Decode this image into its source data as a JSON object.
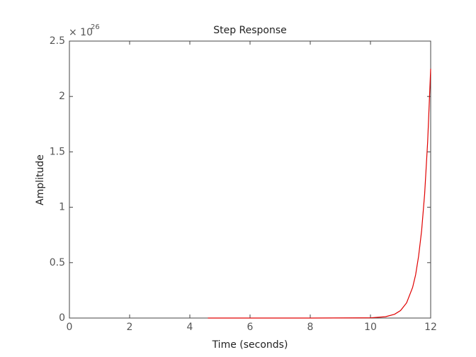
{
  "chart_data": {
    "type": "line",
    "title": "Step Response",
    "x_label": "Time (seconds)",
    "y_label": "Amplitude",
    "y_multiplier": "× 10",
    "y_exponent": "26",
    "x": [
      4.6,
      8,
      10,
      10.5,
      10.8,
      11,
      11.2,
      11.4,
      11.5,
      11.6,
      11.7,
      11.8,
      11.9,
      12
    ],
    "series": [
      {
        "color": "#e00000",
        "values": [
          0,
          0,
          0.002,
          0.012,
          0.034,
          0.068,
          0.137,
          0.276,
          0.39,
          0.56,
          0.79,
          1.12,
          1.59,
          2.25
        ]
      }
    ],
    "xlim": [
      0,
      12
    ],
    "ylim": [
      0,
      2.5
    ],
    "xticks": [
      0,
      2,
      4,
      6,
      8,
      10,
      12
    ],
    "yticks": [
      0,
      0.5,
      1,
      1.5,
      2,
      2.5
    ],
    "grid": false
  }
}
